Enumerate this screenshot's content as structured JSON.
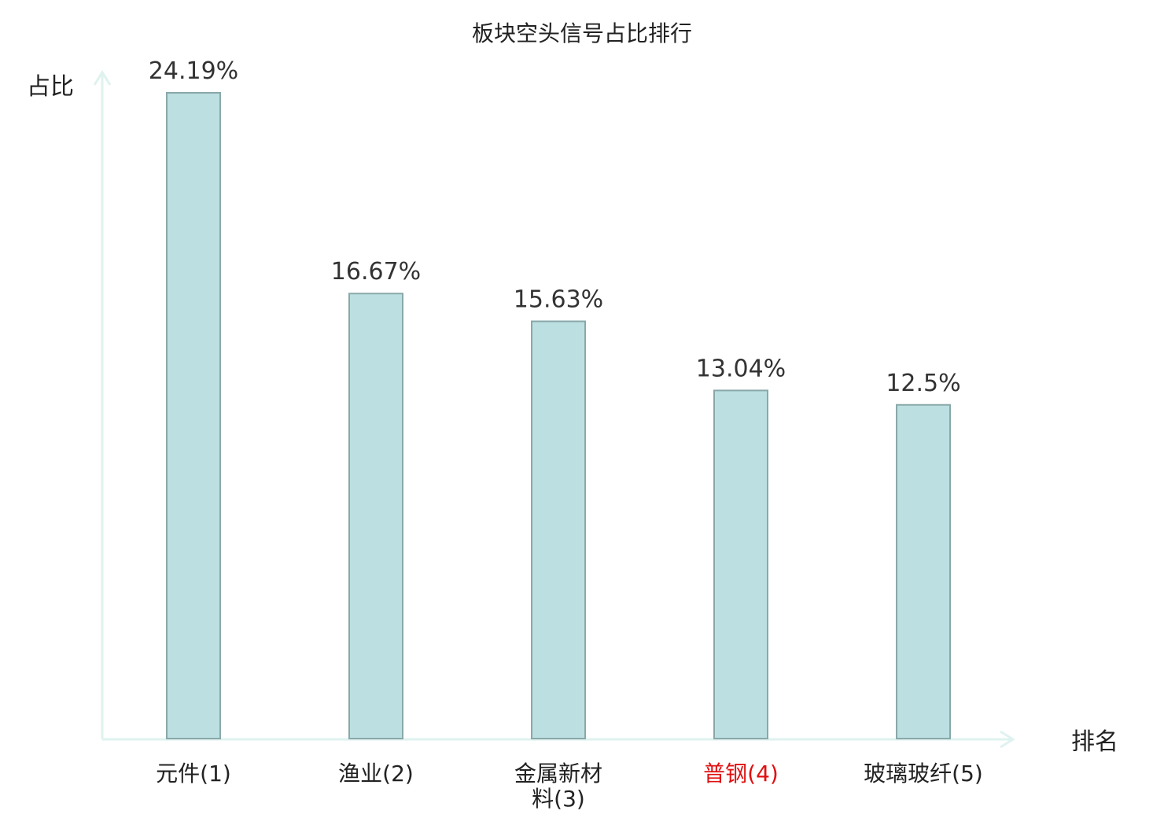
{
  "chart_data": {
    "type": "bar",
    "title": "板块空头信号占比排行",
    "ylabel": "占比",
    "xlabel": "排名",
    "ylim": [
      0,
      24.19
    ],
    "categories": [
      {
        "lines": [
          "元件(1)"
        ],
        "highlight": false
      },
      {
        "lines": [
          "渔业(2)"
        ],
        "highlight": false
      },
      {
        "lines": [
          "金属新材",
          "料(3)"
        ],
        "highlight": false
      },
      {
        "lines": [
          "普钢(4)"
        ],
        "highlight": true
      },
      {
        "lines": [
          "玻璃玻纤(5)"
        ],
        "highlight": false
      }
    ],
    "values": [
      24.19,
      16.67,
      15.63,
      13.04,
      12.5
    ],
    "value_labels": [
      "24.19%",
      "16.67%",
      "15.63%",
      "13.04%",
      "12.5%"
    ],
    "grid": false,
    "legend": "none",
    "colors": {
      "bar_fill": "#bce0e2",
      "bar_stroke": "#8aa8a9",
      "axis": "#dff2ef",
      "highlight": "#e01010"
    }
  }
}
